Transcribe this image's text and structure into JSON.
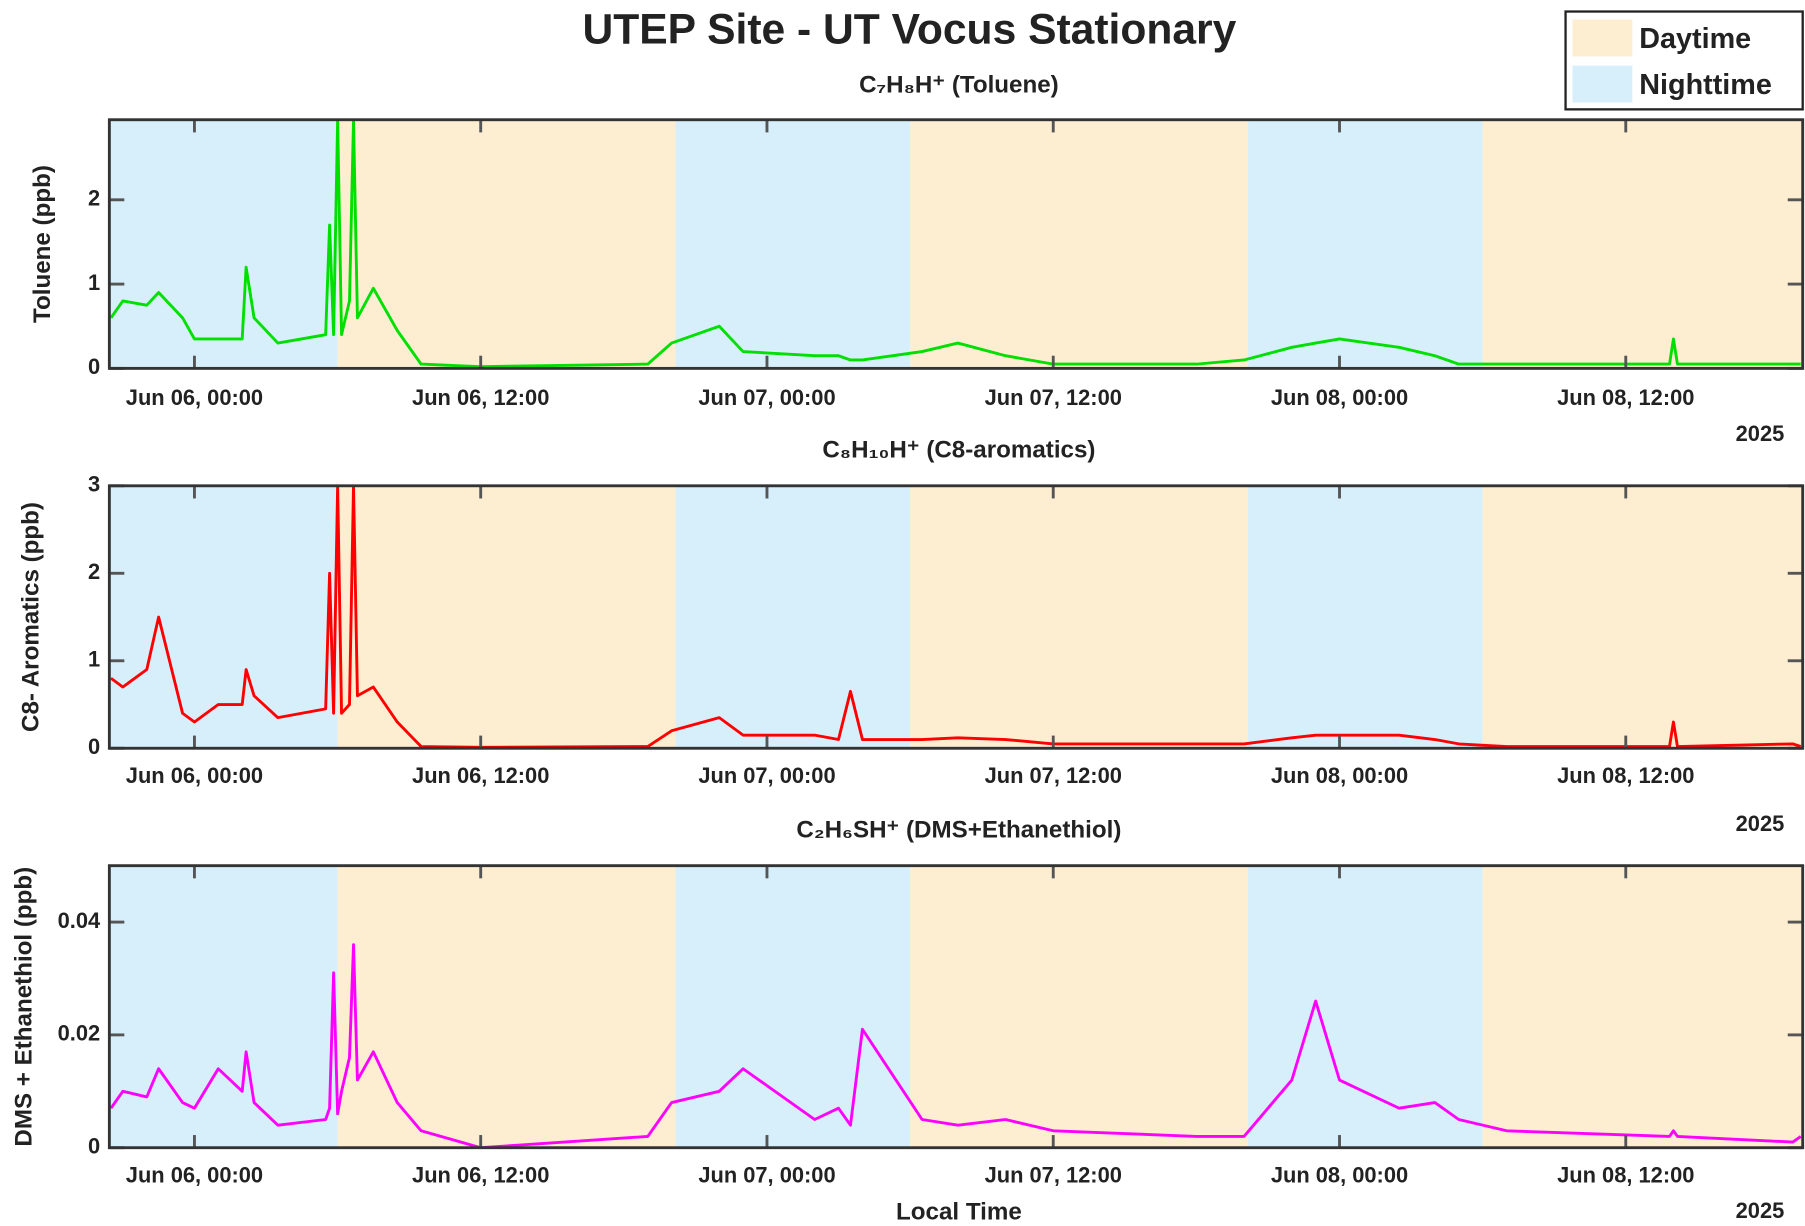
{
  "title": "UTEP Site - UT Vocus Stationary",
  "x_label": "Local Time",
  "legend": {
    "position": "upper right",
    "entries": [
      {
        "name": "Daytime",
        "color": "#fdeed2"
      },
      {
        "name": "Nighttime",
        "color": "#d7effa"
      }
    ]
  },
  "shading": [
    {
      "start": "2025-06-05T20:26",
      "end": "2025-06-06T06:00",
      "kind": "Nighttime"
    },
    {
      "start": "2025-06-06T06:00",
      "end": "2025-06-06T20:10",
      "kind": "Daytime"
    },
    {
      "start": "2025-06-06T20:10",
      "end": "2025-06-07T06:00",
      "kind": "Nighttime"
    },
    {
      "start": "2025-06-07T06:00",
      "end": "2025-06-07T20:10",
      "kind": "Daytime"
    },
    {
      "start": "2025-06-07T20:10",
      "end": "2025-06-08T06:00",
      "kind": "Nighttime"
    },
    {
      "start": "2025-06-08T06:00",
      "end": "2025-06-08T19:25",
      "kind": "Daytime"
    }
  ],
  "chart_data": [
    {
      "type": "line",
      "subtitle": "C₇H₈H⁺ (Toluene)",
      "y_label": "Toluene (ppb)",
      "year_label": "2025",
      "color": "#00e000",
      "x": [
        "2025-06-05T20:30",
        "2025-06-05T21:00",
        "2025-06-05T22:00",
        "2025-06-05T22:30",
        "2025-06-05T23:30",
        "2025-06-06T00:00",
        "2025-06-06T01:00",
        "2025-06-06T02:00",
        "2025-06-06T02:10",
        "2025-06-06T02:30",
        "2025-06-06T03:30",
        "2025-06-06T05:30",
        "2025-06-06T05:40",
        "2025-06-06T05:50",
        "2025-06-06T06:00",
        "2025-06-06T06:10",
        "2025-06-06T06:30",
        "2025-06-06T06:40",
        "2025-06-06T06:50",
        "2025-06-06T07:30",
        "2025-06-06T08:30",
        "2025-06-06T09:30",
        "2025-06-06T12:00",
        "2025-06-06T19:00",
        "2025-06-06T20:00",
        "2025-06-06T22:00",
        "2025-06-06T23:00",
        "2025-06-07T02:00",
        "2025-06-07T03:00",
        "2025-06-07T03:30",
        "2025-06-07T04:00",
        "2025-06-07T06:30",
        "2025-06-07T08:00",
        "2025-06-07T10:00",
        "2025-06-07T12:00",
        "2025-06-07T18:00",
        "2025-06-07T20:00",
        "2025-06-07T22:00",
        "2025-06-07T23:00",
        "2025-06-08T00:00",
        "2025-06-08T02:30",
        "2025-06-08T04:00",
        "2025-06-08T05:00",
        "2025-06-08T07:00",
        "2025-06-08T13:50",
        "2025-06-08T14:00",
        "2025-06-08T14:10",
        "2025-06-08T19:00",
        "2025-06-08T19:20"
      ],
      "values": [
        0.6,
        0.8,
        0.75,
        0.9,
        0.6,
        0.35,
        0.35,
        0.35,
        1.2,
        0.6,
        0.3,
        0.4,
        1.7,
        0.4,
        2.95,
        0.4,
        0.8,
        2.95,
        0.6,
        0.95,
        0.45,
        0.05,
        0.02,
        0.05,
        0.3,
        0.5,
        0.2,
        0.15,
        0.15,
        0.1,
        0.1,
        0.2,
        0.3,
        0.15,
        0.05,
        0.05,
        0.1,
        0.25,
        0.3,
        0.35,
        0.25,
        0.15,
        0.05,
        0.05,
        0.05,
        0.35,
        0.05,
        0.05,
        0.05
      ],
      "xlim": [
        "2025-06-05T20:26",
        "2025-06-08T19:25"
      ],
      "xticks": [
        {
          "value": "2025-06-06T00:00",
          "label": "Jun 06, 00:00"
        },
        {
          "value": "2025-06-06T12:00",
          "label": "Jun 06, 12:00"
        },
        {
          "value": "2025-06-07T00:00",
          "label": "Jun 07, 00:00"
        },
        {
          "value": "2025-06-07T12:00",
          "label": "Jun 07, 12:00"
        },
        {
          "value": "2025-06-08T00:00",
          "label": "Jun 08, 00:00"
        },
        {
          "value": "2025-06-08T12:00",
          "label": "Jun 08, 12:00"
        }
      ],
      "ylim": [
        0,
        2.95
      ],
      "yticks": [
        0,
        1,
        2
      ]
    },
    {
      "type": "line",
      "subtitle": "C₈H₁₀H⁺ (C8-aromatics)",
      "y_label": "C8- Aromatics (ppb)",
      "year_label": "2025",
      "color": "#ff0000",
      "x": [
        "2025-06-05T20:30",
        "2025-06-05T21:00",
        "2025-06-05T22:00",
        "2025-06-05T22:30",
        "2025-06-05T23:30",
        "2025-06-06T00:00",
        "2025-06-06T01:00",
        "2025-06-06T02:00",
        "2025-06-06T02:10",
        "2025-06-06T02:30",
        "2025-06-06T03:30",
        "2025-06-06T05:30",
        "2025-06-06T05:40",
        "2025-06-06T05:50",
        "2025-06-06T06:00",
        "2025-06-06T06:10",
        "2025-06-06T06:30",
        "2025-06-06T06:40",
        "2025-06-06T06:50",
        "2025-06-06T07:30",
        "2025-06-06T08:30",
        "2025-06-06T09:30",
        "2025-06-06T12:00",
        "2025-06-06T19:00",
        "2025-06-06T20:00",
        "2025-06-06T22:00",
        "2025-06-06T23:00",
        "2025-06-07T02:00",
        "2025-06-07T03:00",
        "2025-06-07T03:30",
        "2025-06-07T04:00",
        "2025-06-07T06:30",
        "2025-06-07T08:00",
        "2025-06-07T10:00",
        "2025-06-07T12:00",
        "2025-06-07T18:00",
        "2025-06-07T20:00",
        "2025-06-07T22:00",
        "2025-06-07T23:00",
        "2025-06-08T00:00",
        "2025-06-08T02:30",
        "2025-06-08T04:00",
        "2025-06-08T05:00",
        "2025-06-08T07:00",
        "2025-06-08T13:50",
        "2025-06-08T14:00",
        "2025-06-08T14:10",
        "2025-06-08T19:00",
        "2025-06-08T19:20"
      ],
      "values": [
        0.8,
        0.7,
        0.9,
        1.5,
        0.4,
        0.3,
        0.5,
        0.5,
        0.9,
        0.6,
        0.35,
        0.45,
        2.0,
        0.4,
        3.0,
        0.4,
        0.5,
        3.0,
        0.6,
        0.7,
        0.3,
        0.02,
        0.01,
        0.02,
        0.2,
        0.35,
        0.15,
        0.15,
        0.1,
        0.65,
        0.1,
        0.1,
        0.12,
        0.1,
        0.05,
        0.05,
        0.05,
        0.12,
        0.15,
        0.15,
        0.15,
        0.1,
        0.05,
        0.02,
        0.02,
        0.3,
        0.02,
        0.05,
        0.02
      ],
      "xlim": [
        "2025-06-05T20:26",
        "2025-06-08T19:25"
      ],
      "xticks": [
        {
          "value": "2025-06-06T00:00",
          "label": "Jun 06, 00:00"
        },
        {
          "value": "2025-06-06T12:00",
          "label": "Jun 06, 12:00"
        },
        {
          "value": "2025-06-07T00:00",
          "label": "Jun 07, 00:00"
        },
        {
          "value": "2025-06-07T12:00",
          "label": "Jun 07, 12:00"
        },
        {
          "value": "2025-06-08T00:00",
          "label": "Jun 08, 00:00"
        },
        {
          "value": "2025-06-08T12:00",
          "label": "Jun 08, 12:00"
        }
      ],
      "ylim": [
        0,
        3
      ],
      "yticks": [
        0,
        1,
        2,
        3
      ]
    },
    {
      "type": "line",
      "subtitle": "C₂H₆SH⁺ (DMS+Ethanethiol)",
      "y_label": "DMS + Ethanethiol (ppb)",
      "year_label": "2025",
      "color": "#ff00ff",
      "x": [
        "2025-06-05T20:30",
        "2025-06-05T21:00",
        "2025-06-05T22:00",
        "2025-06-05T22:30",
        "2025-06-05T23:30",
        "2025-06-06T00:00",
        "2025-06-06T01:00",
        "2025-06-06T02:00",
        "2025-06-06T02:10",
        "2025-06-06T02:30",
        "2025-06-06T03:30",
        "2025-06-06T05:30",
        "2025-06-06T05:40",
        "2025-06-06T05:50",
        "2025-06-06T06:00",
        "2025-06-06T06:10",
        "2025-06-06T06:30",
        "2025-06-06T06:40",
        "2025-06-06T06:50",
        "2025-06-06T07:30",
        "2025-06-06T08:30",
        "2025-06-06T09:30",
        "2025-06-06T12:00",
        "2025-06-06T19:00",
        "2025-06-06T20:00",
        "2025-06-06T22:00",
        "2025-06-06T23:00",
        "2025-06-07T02:00",
        "2025-06-07T03:00",
        "2025-06-07T03:30",
        "2025-06-07T04:00",
        "2025-06-07T06:30",
        "2025-06-07T08:00",
        "2025-06-07T10:00",
        "2025-06-07T12:00",
        "2025-06-07T18:00",
        "2025-06-07T20:00",
        "2025-06-07T22:00",
        "2025-06-07T23:00",
        "2025-06-08T00:00",
        "2025-06-08T02:30",
        "2025-06-08T04:00",
        "2025-06-08T05:00",
        "2025-06-08T07:00",
        "2025-06-08T13:50",
        "2025-06-08T14:00",
        "2025-06-08T14:10",
        "2025-06-08T19:00",
        "2025-06-08T19:20"
      ],
      "values": [
        0.007,
        0.01,
        0.009,
        0.014,
        0.008,
        0.007,
        0.014,
        0.01,
        0.017,
        0.008,
        0.004,
        0.005,
        0.007,
        0.031,
        0.006,
        0.01,
        0.016,
        0.036,
        0.012,
        0.017,
        0.008,
        0.003,
        0.0,
        0.002,
        0.008,
        0.01,
        0.014,
        0.005,
        0.007,
        0.004,
        0.021,
        0.005,
        0.004,
        0.005,
        0.003,
        0.002,
        0.002,
        0.012,
        0.026,
        0.012,
        0.007,
        0.008,
        0.005,
        0.003,
        0.002,
        0.003,
        0.002,
        0.001,
        0.002
      ],
      "xlim": [
        "2025-06-05T20:26",
        "2025-06-08T19:25"
      ],
      "xticks": [
        {
          "value": "2025-06-06T00:00",
          "label": "Jun 06, 00:00"
        },
        {
          "value": "2025-06-06T12:00",
          "label": "Jun 06, 12:00"
        },
        {
          "value": "2025-06-07T00:00",
          "label": "Jun 07, 00:00"
        },
        {
          "value": "2025-06-07T12:00",
          "label": "Jun 07, 12:00"
        },
        {
          "value": "2025-06-08T00:00",
          "label": "Jun 08, 00:00"
        },
        {
          "value": "2025-06-08T12:00",
          "label": "Jun 08, 12:00"
        }
      ],
      "ylim": [
        0,
        0.05
      ],
      "yticks": [
        0,
        0.02,
        0.04
      ]
    }
  ]
}
